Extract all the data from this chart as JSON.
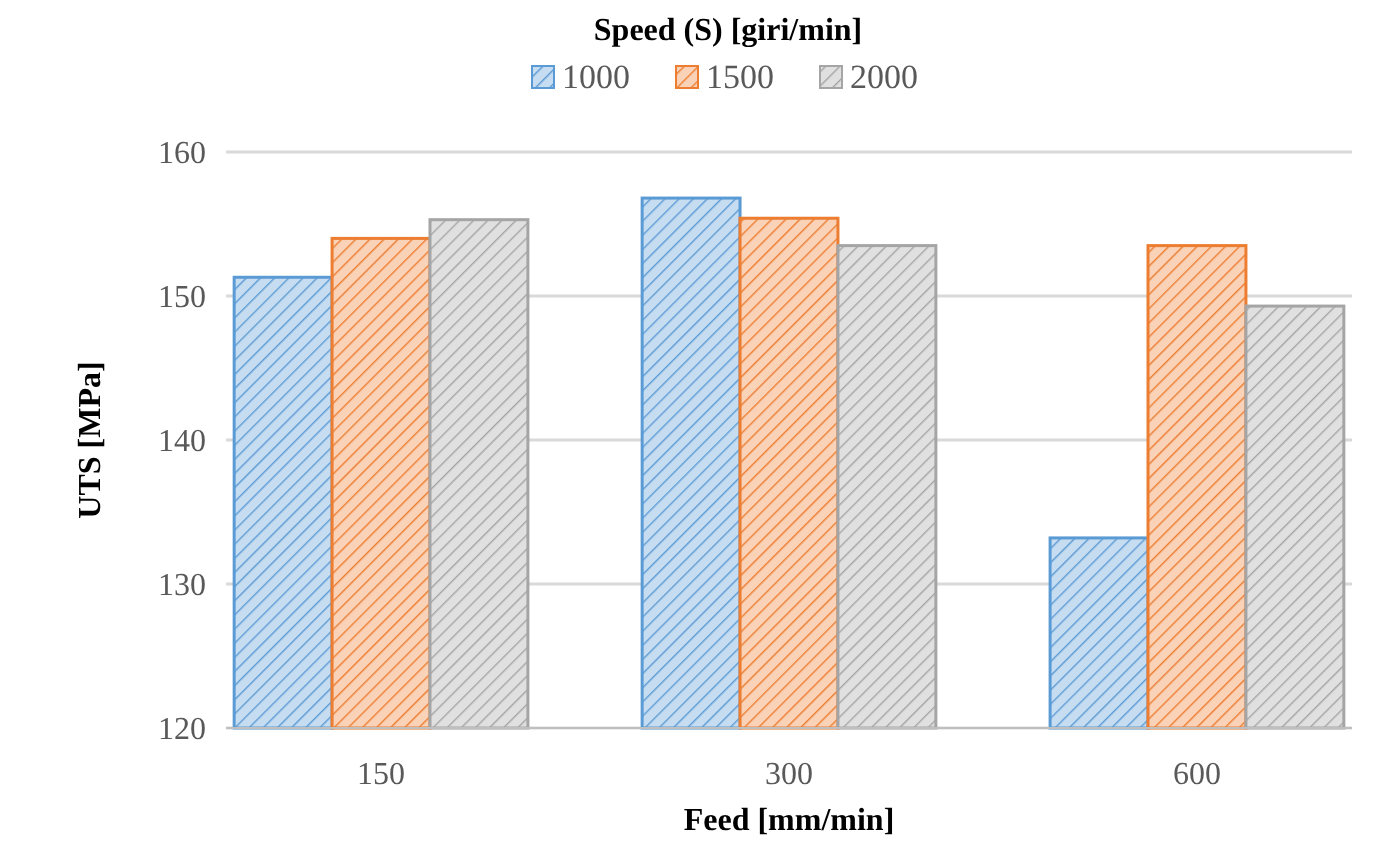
{
  "chart_data": {
    "type": "bar",
    "legend_title": "Speed (S) [giri/min]",
    "xlabel": "Feed [mm/min]",
    "ylabel": "UTS [MPa]",
    "categories": [
      "150",
      "300",
      "600"
    ],
    "series": [
      {
        "name": "1000",
        "color": "#5b9bd5",
        "values": [
          151.3,
          156.8,
          133.2
        ]
      },
      {
        "name": "1500",
        "color": "#ed7d31",
        "values": [
          154.0,
          155.4,
          153.5
        ]
      },
      {
        "name": "2000",
        "color": "#a5a5a5",
        "values": [
          155.3,
          153.5,
          149.3
        ]
      }
    ],
    "ylim": [
      120,
      160
    ],
    "yticks": [
      120,
      130,
      140,
      150,
      160
    ],
    "grid": "y",
    "legend": "top"
  }
}
